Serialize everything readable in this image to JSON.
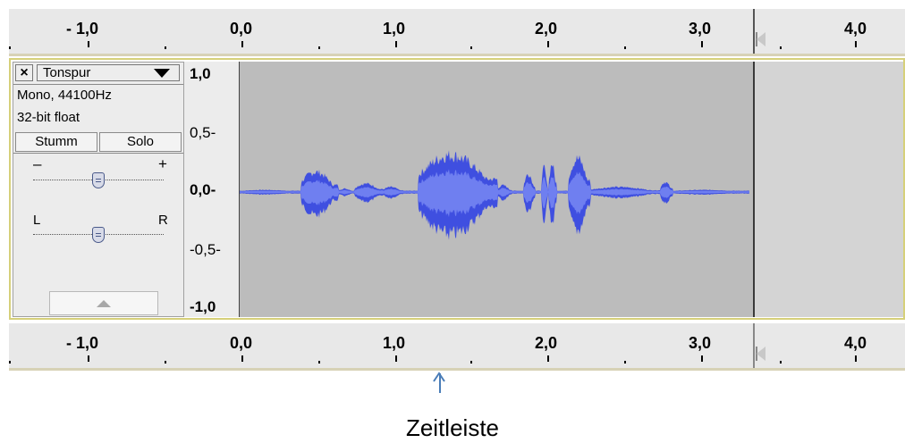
{
  "ruler": {
    "ticks": [
      "- 1,0",
      "0,0",
      "1,0",
      "2,0",
      "3,0",
      "4,0"
    ]
  },
  "track": {
    "close_label": "×",
    "name": "Tonspur",
    "info_rate": "Mono, 44100Hz",
    "info_format": "32-bit float",
    "mute_label": "Stumm",
    "solo_label": "Solo",
    "gain_minus": "–",
    "gain_plus": "+",
    "pan_left": "L",
    "pan_right": "R",
    "gain_level": 0.5,
    "pan_level": 0.5
  },
  "vertical_scale": {
    "labels": [
      "1,0",
      "0,5-",
      "0,0-",
      "-0,5-",
      "-1,0"
    ]
  },
  "annotation": {
    "caption": "Zeitleiste"
  },
  "colors": {
    "waveform": "#3f4fe0",
    "waveform_rms": "#6f7ff0",
    "track_bg": "#bcbcbc",
    "track_border": "#d6d07a",
    "arrow": "#4a7db8"
  }
}
